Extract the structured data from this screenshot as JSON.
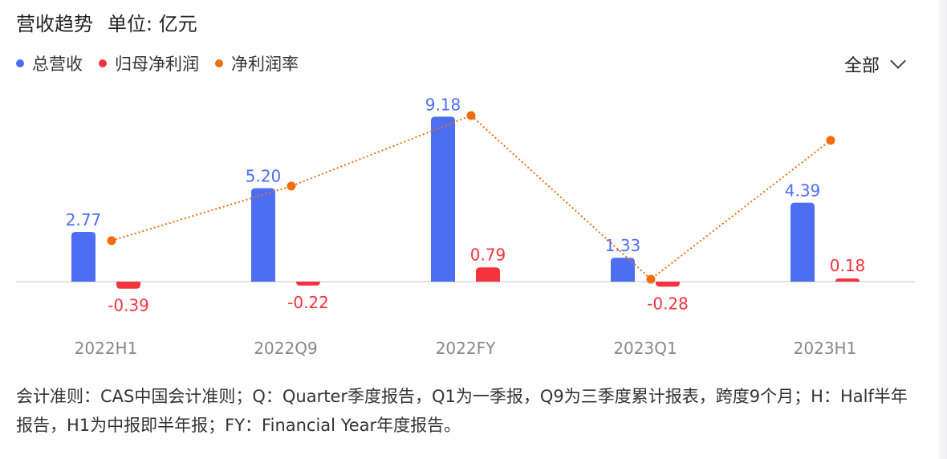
{
  "header": {
    "title": "营收趋势",
    "unit": "单位: 亿元"
  },
  "legend": [
    {
      "label": "总营收",
      "color": "#4e6ef2"
    },
    {
      "label": "归母净利润",
      "color": "#f5333f"
    },
    {
      "label": "净利润率",
      "color": "#f36c10"
    }
  ],
  "filter": {
    "label": "全部",
    "icon": "chevron-down-icon"
  },
  "chart_data": {
    "type": "bar",
    "categories": [
      "2022H1",
      "2022Q9",
      "2022FY",
      "2023Q1",
      "2023H1"
    ],
    "series": [
      {
        "name": "总营收",
        "kind": "bar",
        "color": "#4e6ef2",
        "values": [
          2.77,
          5.2,
          9.18,
          1.33,
          4.39
        ],
        "labels": [
          "2.77",
          "5.20",
          "9.18",
          "1.33",
          "4.39"
        ]
      },
      {
        "name": "归母净利润",
        "kind": "bar",
        "color": "#f5333f",
        "values": [
          -0.39,
          -0.22,
          0.79,
          -0.28,
          0.18
        ],
        "labels": [
          "-0.39",
          "-0.22",
          "0.79",
          "-0.28",
          "0.18"
        ]
      },
      {
        "name": "净利润率",
        "kind": "line",
        "color": "#f36c10",
        "style": "dotted",
        "values": [
          -14.1,
          -4.2,
          8.6,
          -21.1,
          4.1
        ]
      }
    ],
    "ylim_bar": [
      -1.0,
      9.5
    ],
    "ylim_line": [
      -21.1,
      8.6
    ],
    "grid": false
  },
  "footnote": "会计准则：CAS中国会计准则；Q：Quarter季度报告，Q1为一季报，Q9为三季度累计报表，跨度9个月；H：Half半年报告，H1为中报即半年报；FY：Financial Year年度报告。"
}
